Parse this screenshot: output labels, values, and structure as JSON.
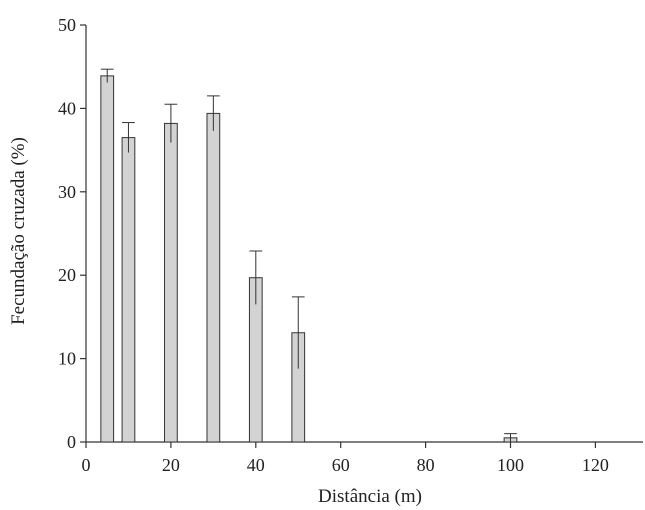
{
  "chart_data": {
    "type": "bar",
    "title": "",
    "xlabel": "Distância (m)",
    "ylabel": "Fecundação cruzada (%)",
    "xlim": [
      0,
      130
    ],
    "ylim": [
      0,
      50
    ],
    "x_ticks": [
      "0",
      "20",
      "40",
      "60",
      "80",
      "100",
      "120"
    ],
    "x_tick_values": [
      0,
      20,
      40,
      60,
      80,
      100,
      120
    ],
    "y_ticks": [
      "0",
      "10",
      "20",
      "30",
      "40",
      "50"
    ],
    "y_tick_values": [
      0,
      10,
      20,
      30,
      40,
      50
    ],
    "grid": false,
    "bar_color": "#d3d3d3",
    "edge_color": "#333333",
    "error_bars": true,
    "bar_width_units": 3,
    "points": [
      {
        "x": 5,
        "value": 43.9,
        "error": 0.8
      },
      {
        "x": 10,
        "value": 36.5,
        "error": 1.8
      },
      {
        "x": 20,
        "value": 38.2,
        "error": 2.3
      },
      {
        "x": 30,
        "value": 39.4,
        "error": 2.1
      },
      {
        "x": 40,
        "value": 19.7,
        "error": 3.2
      },
      {
        "x": 50,
        "value": 13.1,
        "error": 4.3
      },
      {
        "x": 100,
        "value": 0.5,
        "error": 0.5
      }
    ]
  }
}
